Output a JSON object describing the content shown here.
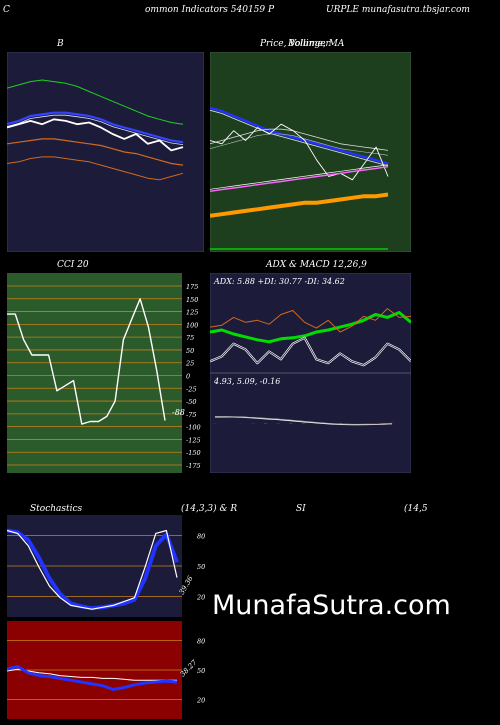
{
  "header": {
    "left": "C",
    "mid": "ommon  Indicators 540159 P",
    "right": "URPLE munafasutra.tbsjar.com"
  },
  "panels": {
    "bollinger": {
      "title": "B"
    },
    "price_ma": {
      "title": "Price,  Volume,  MA",
      "title_overlap": "Bollinger"
    },
    "cci": {
      "title": "CCI 20",
      "value_label": "-88"
    },
    "adx_macd": {
      "title": "ADX  & MACD 12,26,9",
      "adx_readout": "ADX: 5.88  +DI: 30.77 -DI: 34.62",
      "macd_readout": "4.93,  5.09,  -0.16"
    },
    "stochastics": {
      "title_left": "Stochastics",
      "title_mid": "(14,3,3) & R",
      "title_right_a": "SI",
      "title_right_b": "(14,5",
      "value_label": "39.36"
    },
    "rsi": {
      "value_label": "38.27"
    }
  },
  "watermark": "MunafaSutra.com",
  "colors": {
    "navy": "#1c1c3a",
    "green_bg": "#1e3f1e",
    "cci_bg": "#2b5a2b",
    "maroon": "#8b0000",
    "blue": "#1c2aff",
    "orange": "#d2691e",
    "grid_orange": "#c9801a"
  },
  "chart_data": [
    {
      "type": "line",
      "name": "bollinger",
      "series": [
        {
          "values": [
            94,
            96,
            98,
            99,
            98,
            97,
            95,
            92,
            89,
            86,
            83,
            80,
            77,
            75,
            73,
            72
          ]
        },
        {
          "values": [
            72,
            74,
            77,
            78,
            79,
            79,
            78,
            77,
            75,
            72,
            70,
            68,
            66,
            64,
            62,
            61
          ]
        },
        {
          "values": [
            60,
            61,
            62,
            63,
            63,
            62,
            61,
            60,
            59,
            57,
            55,
            54,
            52,
            50,
            48,
            47
          ]
        },
        {
          "values": [
            70,
            72,
            74,
            72,
            75,
            74,
            72,
            73,
            70,
            66,
            63,
            66,
            60,
            62,
            56,
            58
          ]
        },
        {
          "values": [
            48,
            49,
            51,
            52,
            52,
            51,
            50,
            49,
            47,
            45,
            43,
            41,
            39,
            38,
            40,
            42
          ]
        }
      ]
    },
    {
      "type": "line",
      "name": "price_volume_ma",
      "series": [
        {
          "values": [
            82,
            80,
            77,
            74,
            71,
            68,
            66,
            64,
            62,
            60,
            58,
            56,
            54,
            52,
            50,
            48
          ]
        },
        {
          "values": [
            60,
            62,
            64,
            66,
            68,
            69,
            69,
            68,
            66,
            64,
            62,
            60,
            59,
            58,
            57,
            56
          ]
        },
        {
          "values": [
            62,
            60,
            68,
            62,
            70,
            66,
            72,
            68,
            62,
            50,
            40,
            42,
            38,
            48,
            58,
            40
          ]
        },
        {
          "values": [
            31,
            32,
            33,
            34,
            35,
            36,
            37,
            38,
            39,
            40,
            41,
            42,
            43,
            44,
            45,
            46
          ]
        },
        {
          "values": [
            16,
            17,
            18,
            19,
            20,
            21,
            22,
            23,
            24,
            24,
            25,
            26,
            27,
            28,
            28,
            29
          ]
        }
      ]
    },
    {
      "type": "line",
      "name": "cci",
      "ylim": [
        -175,
        175
      ],
      "yticks": [
        175,
        150,
        125,
        100,
        75,
        50,
        25,
        0,
        -25,
        -50,
        -75,
        -100,
        -125,
        -150,
        -175
      ],
      "series": [
        {
          "values": [
            120,
            120,
            70,
            40,
            40,
            40,
            -30,
            -20,
            -10,
            -95,
            -90,
            -90,
            -80,
            -50,
            70,
            110,
            150,
            95,
            10,
            -88
          ]
        }
      ]
    },
    {
      "type": "line",
      "name": "adx",
      "series": [
        {
          "values": [
            40,
            42,
            38,
            35,
            32,
            30,
            33,
            34,
            36,
            40,
            42,
            45,
            48,
            52,
            58,
            55,
            60,
            50
          ]
        },
        {
          "values": [
            45,
            47,
            55,
            50,
            52,
            48,
            58,
            62,
            50,
            44,
            52,
            40,
            46,
            56,
            52,
            64,
            55,
            56
          ]
        },
        {
          "values": [
            10,
            15,
            28,
            22,
            8,
            20,
            12,
            28,
            34,
            12,
            8,
            18,
            10,
            6,
            14,
            28,
            22,
            10
          ]
        }
      ]
    },
    {
      "type": "line",
      "name": "macd",
      "series": [
        {
          "values": [
            4.9,
            5.0,
            4.7,
            4.2,
            3.4,
            2.8,
            1.9,
            1.0,
            0.2,
            -0.6,
            -1.1,
            -1.3,
            -1.2,
            -1.0,
            -0.6
          ]
        },
        {
          "values": [
            5.1,
            5.0,
            4.8,
            4.4,
            3.8,
            3.1,
            2.3,
            1.4,
            0.5,
            -0.3,
            -0.9,
            -1.2,
            -1.2,
            -1.1,
            -0.8
          ]
        },
        {
          "values": [
            -0.16,
            0,
            -0.1,
            -0.2,
            -0.4,
            -0.3,
            -0.4,
            -0.4,
            -0.3,
            -0.3,
            -0.2,
            -0.1,
            0,
            0.1,
            0.2
          ]
        }
      ]
    },
    {
      "type": "line",
      "name": "stochastics",
      "ylim": [
        0,
        100
      ],
      "yticks": [
        80,
        50,
        20
      ],
      "series": [
        {
          "values": [
            88,
            85,
            72,
            50,
            30,
            18,
            10,
            8,
            6,
            8,
            10,
            14,
            18,
            50,
            85,
            88,
            39
          ]
        },
        {
          "values": [
            88,
            86,
            78,
            60,
            38,
            22,
            12,
            9,
            7,
            8,
            10,
            12,
            16,
            38,
            72,
            84,
            55
          ]
        }
      ]
    },
    {
      "type": "line",
      "name": "rsi",
      "ylim": [
        0,
        100
      ],
      "yticks": [
        80,
        50,
        20
      ],
      "series": [
        {
          "values": [
            52,
            55,
            48,
            45,
            44,
            42,
            40,
            38,
            36,
            34,
            30,
            32,
            35,
            37,
            38,
            39,
            38
          ]
        },
        {
          "values": [
            50,
            52,
            50,
            48,
            47,
            45,
            44,
            43,
            43,
            42,
            42,
            41,
            40,
            40,
            40,
            40,
            40
          ]
        }
      ]
    }
  ]
}
